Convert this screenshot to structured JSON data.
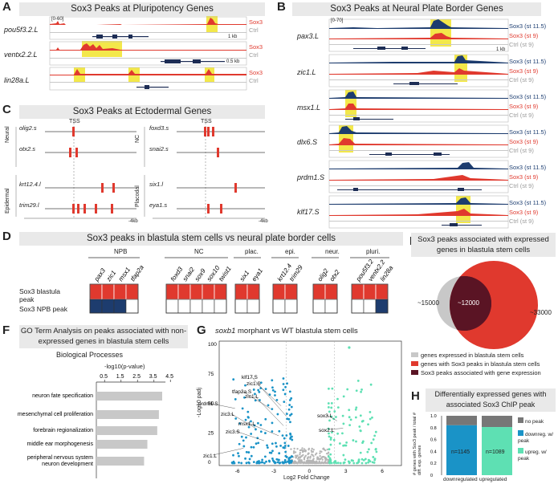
{
  "colors": {
    "red": "#e0392e",
    "navy": "#1d3c6e",
    "grey": "#c8c8c8",
    "highlight": "#f3e84a",
    "teal": "#1a93c7",
    "mint": "#5ee0b3",
    "darkred": "#5a1424"
  },
  "panels": {
    "A": "A",
    "B": "B",
    "C": "C",
    "D": "D",
    "E": "E",
    "F": "F",
    "G": "G",
    "H": "H"
  },
  "panelA": {
    "title": "Sox3 Peaks at Pluripotency Genes",
    "genes": [
      "pou5f3.2.L",
      "ventx2.2.L",
      "lin28a.L"
    ],
    "tracks": [
      "Sox3",
      "Ctrl"
    ],
    "scale": "[0-60]",
    "scalebar": "1 kb",
    "scalebar2": "0.5 kb"
  },
  "panelB": {
    "title": "Sox3 Peaks at Neural Plate Border Genes",
    "genes": [
      "pax3.L",
      "zic1.L",
      "msx1.L",
      "dlx6.S",
      "prdm1.S",
      "klf17.S"
    ],
    "tracks": [
      "Sox3 (st 11.5)",
      "Sox3 (st 9)",
      "Ctrl (st 9)"
    ],
    "scale": "[0-70]",
    "scalebar": "1 kb"
  },
  "panelC": {
    "title": "Sox3 Peaks at Ectodermal Genes",
    "tss": "TSS",
    "groups": [
      "Neural",
      "Epidermal",
      "NC",
      "Placodal"
    ],
    "genes_left": [
      "olig2.s",
      "otx2.s",
      "krt12.4.l",
      "trim29.l"
    ],
    "genes_right": [
      "foxd3.s",
      "snai2.s",
      "six1.l",
      "eya1.s"
    ],
    "axis": "-4kb"
  },
  "panelD": {
    "title": "Sox3 peaks in blastula stem cells vs neural plate border cells",
    "groups": [
      "NPB",
      "NC",
      "plac.",
      "epi.",
      "neur.",
      "pluri."
    ],
    "genes": [
      "pax3",
      "zic1",
      "msx1",
      "tfap2a",
      "foxd3",
      "snai2",
      "sox9",
      "sox10",
      "twist1",
      "six1",
      "eya1",
      "krt12.4",
      "trim29",
      "olig2",
      "otx2",
      "pou5f3.2",
      "ventx2.2",
      "lin28a"
    ],
    "row1": "Sox3 blastula peak",
    "row2": "Sox3 NPB peak",
    "npb_peaks": [
      1,
      1,
      1,
      0,
      0,
      0,
      0,
      0,
      0,
      0,
      0,
      0,
      0,
      0,
      0,
      0,
      0,
      1
    ]
  },
  "panelE": {
    "title": "Sox3 peaks associated with expressed genes in blastula stem cells",
    "left": "~15000",
    "center": "~12000",
    "right": "~33000",
    "legend": [
      "genes expressed in blastula stem cells",
      "genes with Sox3 peaks in blastula stem cells",
      "Sox3 peaks associated with gene expression"
    ]
  },
  "panelF": {
    "title": "GO Term Analysis on peaks associated with non-expressed genes in blastula stem cells",
    "subtitle": "Biological Processes",
    "axis_label": "-log10(p-value)",
    "ticks": [
      "0.5",
      "1.5",
      "2.5",
      "3.5",
      "4.5"
    ],
    "terms": [
      "neuron fate specification",
      "mesenchymal cell proliferation",
      "forebrain regionalization",
      "middle ear morphogenesis",
      "peripheral nervous system neuron development"
    ],
    "values": [
      4.0,
      3.8,
      3.7,
      3.1,
      2.9
    ]
  },
  "panelG": {
    "title_italic": "soxb1",
    "title_rest": " morphant vs WT blastula stem cells",
    "ylabel": "-Log10 padj",
    "xlabel": "Log2 Fold Change",
    "yticks": [
      "100",
      "75",
      "50",
      "25",
      "0"
    ],
    "xticks": [
      "-6",
      "-3",
      "0",
      "3",
      "6"
    ],
    "labels": [
      "prdm1.S",
      "tfap2a.S",
      "zic1.S",
      "klf17.S",
      "zic1.L",
      "zic3.L",
      "msx1.L",
      "zic3.S",
      "zic1.L",
      "sox3.L",
      "sox2.L"
    ]
  },
  "panelH": {
    "title": "Differentially expressed genes with associated Sox3 ChIP peak",
    "ylabel": "# genes with Sox3 peak / total # diff. exp. genes",
    "yticks": [
      "1.0",
      "0.8",
      "0.6",
      "0.4",
      "0.2",
      "0"
    ],
    "bars": [
      {
        "name": "downregulated",
        "n": "n=1145",
        "peak": 0.84
      },
      {
        "name": "upregulated",
        "n": "n=1089",
        "peak": 0.81
      }
    ],
    "legend": [
      "no peak",
      "downreg. w/ peak",
      "upreg. w/ peak"
    ]
  }
}
